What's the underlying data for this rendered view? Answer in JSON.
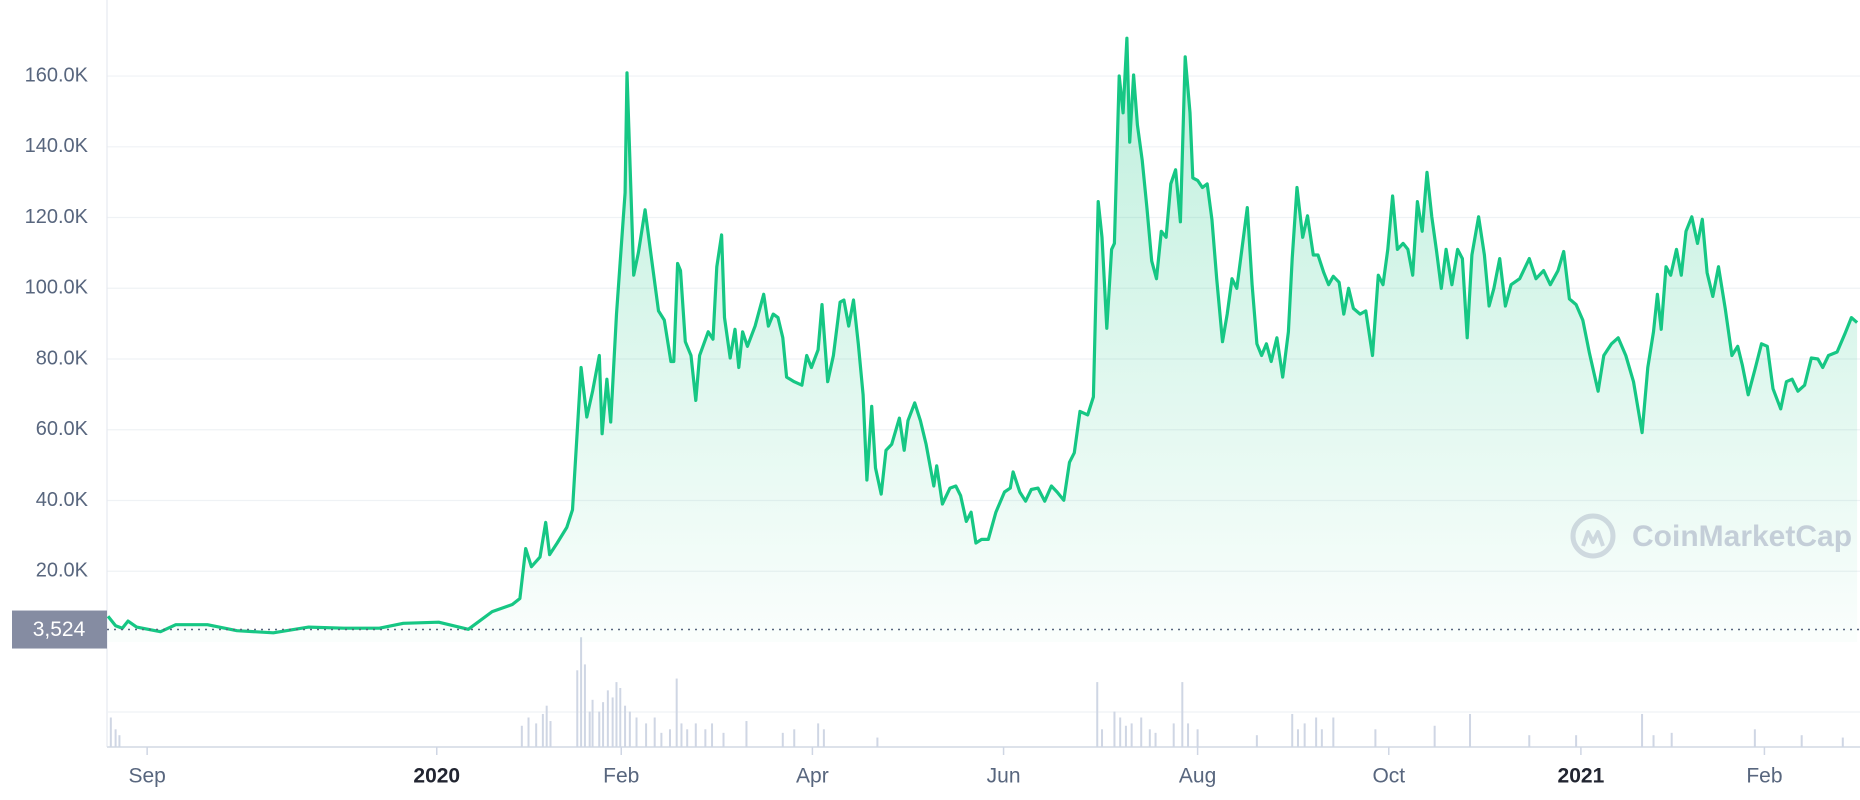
{
  "chart_data": {
    "type": "area",
    "watermark": "CoinMarketCap",
    "xlim": [
      -0.42,
      17.92
    ],
    "xticks": [
      {
        "value": 0,
        "label": "Sep"
      },
      {
        "value": 3.03,
        "label": "2020",
        "bold": true
      },
      {
        "value": 4.96,
        "label": "Feb"
      },
      {
        "value": 6.96,
        "label": "Apr"
      },
      {
        "value": 8.96,
        "label": "Jun"
      },
      {
        "value": 10.99,
        "label": "Aug"
      },
      {
        "value": 12.99,
        "label": "Oct"
      },
      {
        "value": 15.0,
        "label": "2021",
        "bold": true
      },
      {
        "value": 16.92,
        "label": "Feb"
      }
    ],
    "ylim": [
      0,
      181500
    ],
    "yticks": [
      {
        "value": 20000,
        "label": "20.0K"
      },
      {
        "value": 40000,
        "label": "40.0K"
      },
      {
        "value": 60000,
        "label": "60.0K"
      },
      {
        "value": 80000,
        "label": "80.0K"
      },
      {
        "value": 100000,
        "label": "100.0K"
      },
      {
        "value": 120000,
        "label": "120.0K"
      },
      {
        "value": 140000,
        "label": "140.0K"
      },
      {
        "value": 160000,
        "label": "160.0K"
      }
    ],
    "grid": true,
    "color": "#16c784",
    "reference_line": {
      "value": 3524,
      "label": "3,524"
    },
    "x": [
      -0.41,
      -0.33,
      -0.26,
      -0.2,
      -0.11,
      0.01,
      0.14,
      0.3,
      0.63,
      0.94,
      1.32,
      1.69,
      2.06,
      2.43,
      2.68,
      3.05,
      3.36,
      3.61,
      3.82,
      3.9,
      3.96,
      4.02,
      4.11,
      4.17,
      4.21,
      4.29,
      4.39,
      4.45,
      4.54,
      4.6,
      4.66,
      4.73,
      4.76,
      4.81,
      4.85,
      4.91,
      4.98,
      5.0,
      5.02,
      5.09,
      5.14,
      5.21,
      5.27,
      5.35,
      5.41,
      5.48,
      5.51,
      5.55,
      5.58,
      5.63,
      5.69,
      5.74,
      5.78,
      5.87,
      5.92,
      5.96,
      6.01,
      6.04,
      6.1,
      6.15,
      6.19,
      6.23,
      6.28,
      6.36,
      6.45,
      6.5,
      6.55,
      6.6,
      6.65,
      6.69,
      6.77,
      6.85,
      6.9,
      6.95,
      7.02,
      7.06,
      7.12,
      7.18,
      7.25,
      7.29,
      7.34,
      7.39,
      7.44,
      7.49,
      7.53,
      7.58,
      7.62,
      7.68,
      7.73,
      7.79,
      7.87,
      7.92,
      7.96,
      8.03,
      8.09,
      8.15,
      8.23,
      8.26,
      8.32,
      8.4,
      8.46,
      8.51,
      8.57,
      8.62,
      8.67,
      8.73,
      8.8,
      8.88,
      8.97,
      9.03,
      9.06,
      9.13,
      9.19,
      9.25,
      9.32,
      9.39,
      9.46,
      9.52,
      9.59,
      9.65,
      9.7,
      9.76,
      9.84,
      9.9,
      9.95,
      9.99,
      10.04,
      10.09,
      10.12,
      10.17,
      10.21,
      10.25,
      10.28,
      10.32,
      10.36,
      10.41,
      10.46,
      10.51,
      10.56,
      10.61,
      10.66,
      10.71,
      10.76,
      10.81,
      10.86,
      10.91,
      10.94,
      10.99,
      11.04,
      11.09,
      11.14,
      11.19,
      11.25,
      11.3,
      11.35,
      11.4,
      11.45,
      11.51,
      11.56,
      11.61,
      11.66,
      11.71,
      11.76,
      11.82,
      11.88,
      11.94,
      11.98,
      12.03,
      12.09,
      12.14,
      12.2,
      12.25,
      12.31,
      12.36,
      12.41,
      12.47,
      12.52,
      12.57,
      12.62,
      12.69,
      12.75,
      12.82,
      12.88,
      12.93,
      12.98,
      13.03,
      13.08,
      13.14,
      13.19,
      13.24,
      13.29,
      13.34,
      13.39,
      13.44,
      13.49,
      13.54,
      13.59,
      13.65,
      13.71,
      13.76,
      13.81,
      13.86,
      13.93,
      13.99,
      14.04,
      14.09,
      14.15,
      14.21,
      14.27,
      14.36,
      14.46,
      14.53,
      14.61,
      14.68,
      14.76,
      14.82,
      14.88,
      14.95,
      15.02,
      15.09,
      15.18,
      15.24,
      15.32,
      15.39,
      15.47,
      15.55,
      15.64,
      15.7,
      15.76,
      15.8,
      15.84,
      15.89,
      15.94,
      16.0,
      16.05,
      16.1,
      16.16,
      16.22,
      16.27,
      16.32,
      16.38,
      16.44,
      16.51,
      16.58,
      16.64,
      16.69,
      16.75,
      16.82,
      16.89,
      16.95,
      17.01,
      17.09,
      17.15,
      17.21,
      17.27,
      17.34,
      17.41,
      17.48,
      17.53,
      17.59,
      17.68,
      17.76,
      17.83,
      17.89
    ],
    "values": [
      7300,
      4600,
      3900,
      5900,
      4200,
      3600,
      2900,
      4900,
      4900,
      3200,
      2600,
      4200,
      3900,
      3900,
      5300,
      5600,
      3600,
      8600,
      10600,
      12300,
      26400,
      21300,
      24000,
      33800,
      24700,
      28000,
      32400,
      37400,
      77600,
      63600,
      70900,
      81000,
      58900,
      74300,
      62200,
      92700,
      119500,
      127000,
      160900,
      103700,
      110100,
      122200,
      109700,
      93600,
      91000,
      79300,
      79300,
      107000,
      105000,
      84900,
      81000,
      68300,
      81000,
      87700,
      85600,
      106100,
      115100,
      91700,
      80300,
      88400,
      77600,
      87700,
      83600,
      89300,
      98300,
      89300,
      92700,
      91700,
      86000,
      74900,
      73600,
      72600,
      81000,
      77600,
      82600,
      95400,
      73600,
      81000,
      96100,
      96700,
      89300,
      96700,
      84300,
      69900,
      45800,
      66600,
      49200,
      41800,
      54200,
      55900,
      63300,
      54200,
      62600,
      67600,
      62600,
      55900,
      44100,
      49800,
      39000,
      43500,
      44100,
      41400,
      34100,
      36700,
      28000,
      29000,
      29000,
      36700,
      42400,
      43500,
      48100,
      42400,
      39800,
      43100,
      43500,
      39800,
      44100,
      42400,
      40100,
      50800,
      53500,
      65200,
      64200,
      69300,
      124500,
      114400,
      88700,
      111000,
      112700,
      160000,
      149600,
      170700,
      141300,
      160300,
      146200,
      136200,
      122800,
      107700,
      102700,
      116100,
      114400,
      129500,
      133500,
      118800,
      165400,
      149600,
      131200,
      130500,
      128500,
      129500,
      119500,
      102700,
      84900,
      92700,
      102700,
      100000,
      110400,
      122800,
      101000,
      84300,
      81000,
      84300,
      79300,
      86000,
      74900,
      87700,
      108400,
      128500,
      114400,
      120500,
      109400,
      109400,
      104400,
      101000,
      103400,
      101700,
      92700,
      100000,
      94300,
      92700,
      93600,
      81000,
      103700,
      101000,
      111000,
      126100,
      111000,
      112700,
      111000,
      103700,
      124500,
      116100,
      132800,
      120200,
      110400,
      100000,
      111000,
      101000,
      111000,
      108400,
      86000,
      109400,
      120200,
      109400,
      95000,
      100000,
      108400,
      95000,
      101000,
      102700,
      108400,
      102700,
      105000,
      101000,
      105000,
      110400,
      97000,
      95400,
      91000,
      81600,
      70900,
      81000,
      84300,
      86000,
      81000,
      73600,
      59200,
      77600,
      87700,
      98300,
      88400,
      106100,
      103700,
      111000,
      103700,
      116100,
      120200,
      112700,
      119500,
      104400,
      97700,
      106100,
      94300,
      81000,
      83600,
      78200,
      69900,
      77000,
      84300,
      83600,
      71600,
      65900,
      73600,
      74300,
      70900,
      72600,
      80300,
      80000,
      77600,
      81000,
      82000,
      87000,
      91700,
      90300
    ],
    "volume": {
      "color": "#cfd6e4",
      "x": [
        -0.38,
        -0.33,
        -0.29,
        3.92,
        3.99,
        4.07,
        4.14,
        4.18,
        4.22,
        4.5,
        4.54,
        4.58,
        4.63,
        4.66,
        4.73,
        4.77,
        4.82,
        4.87,
        4.91,
        4.95,
        5.0,
        5.05,
        5.12,
        5.22,
        5.31,
        5.38,
        5.47,
        5.54,
        5.59,
        5.65,
        5.74,
        5.84,
        5.91,
        6.03,
        6.27,
        6.65,
        6.77,
        7.02,
        7.08,
        7.64,
        9.94,
        9.99,
        10.12,
        10.18,
        10.24,
        10.3,
        10.4,
        10.49,
        10.55,
        10.74,
        10.83,
        10.89,
        10.99,
        11.61,
        11.98,
        12.04,
        12.11,
        12.23,
        12.29,
        12.41,
        12.85,
        13.47,
        13.84,
        14.46,
        14.95,
        15.64,
        15.76,
        15.95,
        16.82,
        17.31,
        17.74
      ],
      "values": [
        25,
        15,
        10,
        18,
        25,
        20,
        28,
        35,
        22,
        65,
        93,
        70,
        30,
        40,
        30,
        38,
        48,
        42,
        55,
        50,
        35,
        30,
        25,
        20,
        25,
        12,
        15,
        58,
        20,
        15,
        20,
        15,
        20,
        12,
        22,
        12,
        15,
        20,
        15,
        8,
        55,
        15,
        30,
        25,
        18,
        20,
        25,
        15,
        12,
        20,
        55,
        20,
        15,
        10,
        28,
        15,
        20,
        25,
        15,
        25,
        15,
        18,
        28,
        10,
        10,
        28,
        10,
        12,
        15,
        10,
        8
      ]
    }
  }
}
